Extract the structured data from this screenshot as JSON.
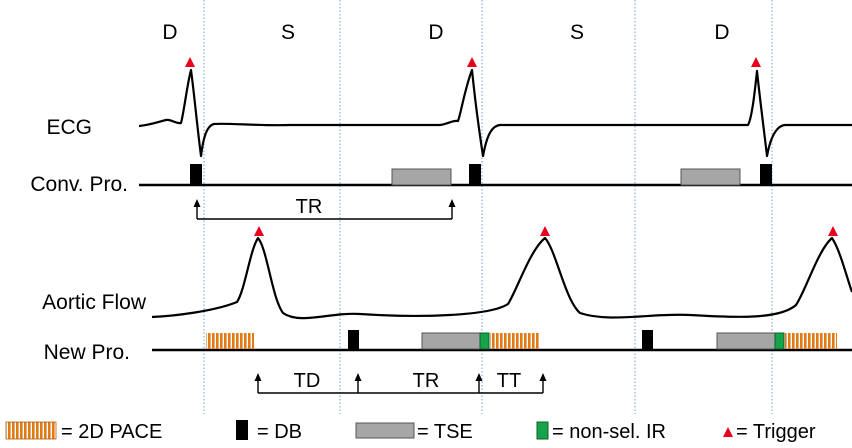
{
  "phases": [
    "D",
    "S",
    "D",
    "S",
    "D"
  ],
  "rows": {
    "ecg": "ECG",
    "conv": "Conv. Pro.",
    "flow": "Aortic Flow",
    "new": "New Pro."
  },
  "intervals": {
    "tr_top": "TR",
    "td": "TD",
    "tr_bottom": "TR",
    "tt": "TT"
  },
  "legend": {
    "pace": "= 2D PACE",
    "db": "= DB",
    "tse": "= TSE",
    "ir": "= non-sel. IR",
    "trigger": "= Trigger"
  },
  "colors": {
    "trigger": "#e8001c",
    "pace": "#e07a16",
    "db": "#000000",
    "tse": "#a6a6a6",
    "ir": "#16a34a",
    "phase_divider": "#6f9fd0"
  }
}
